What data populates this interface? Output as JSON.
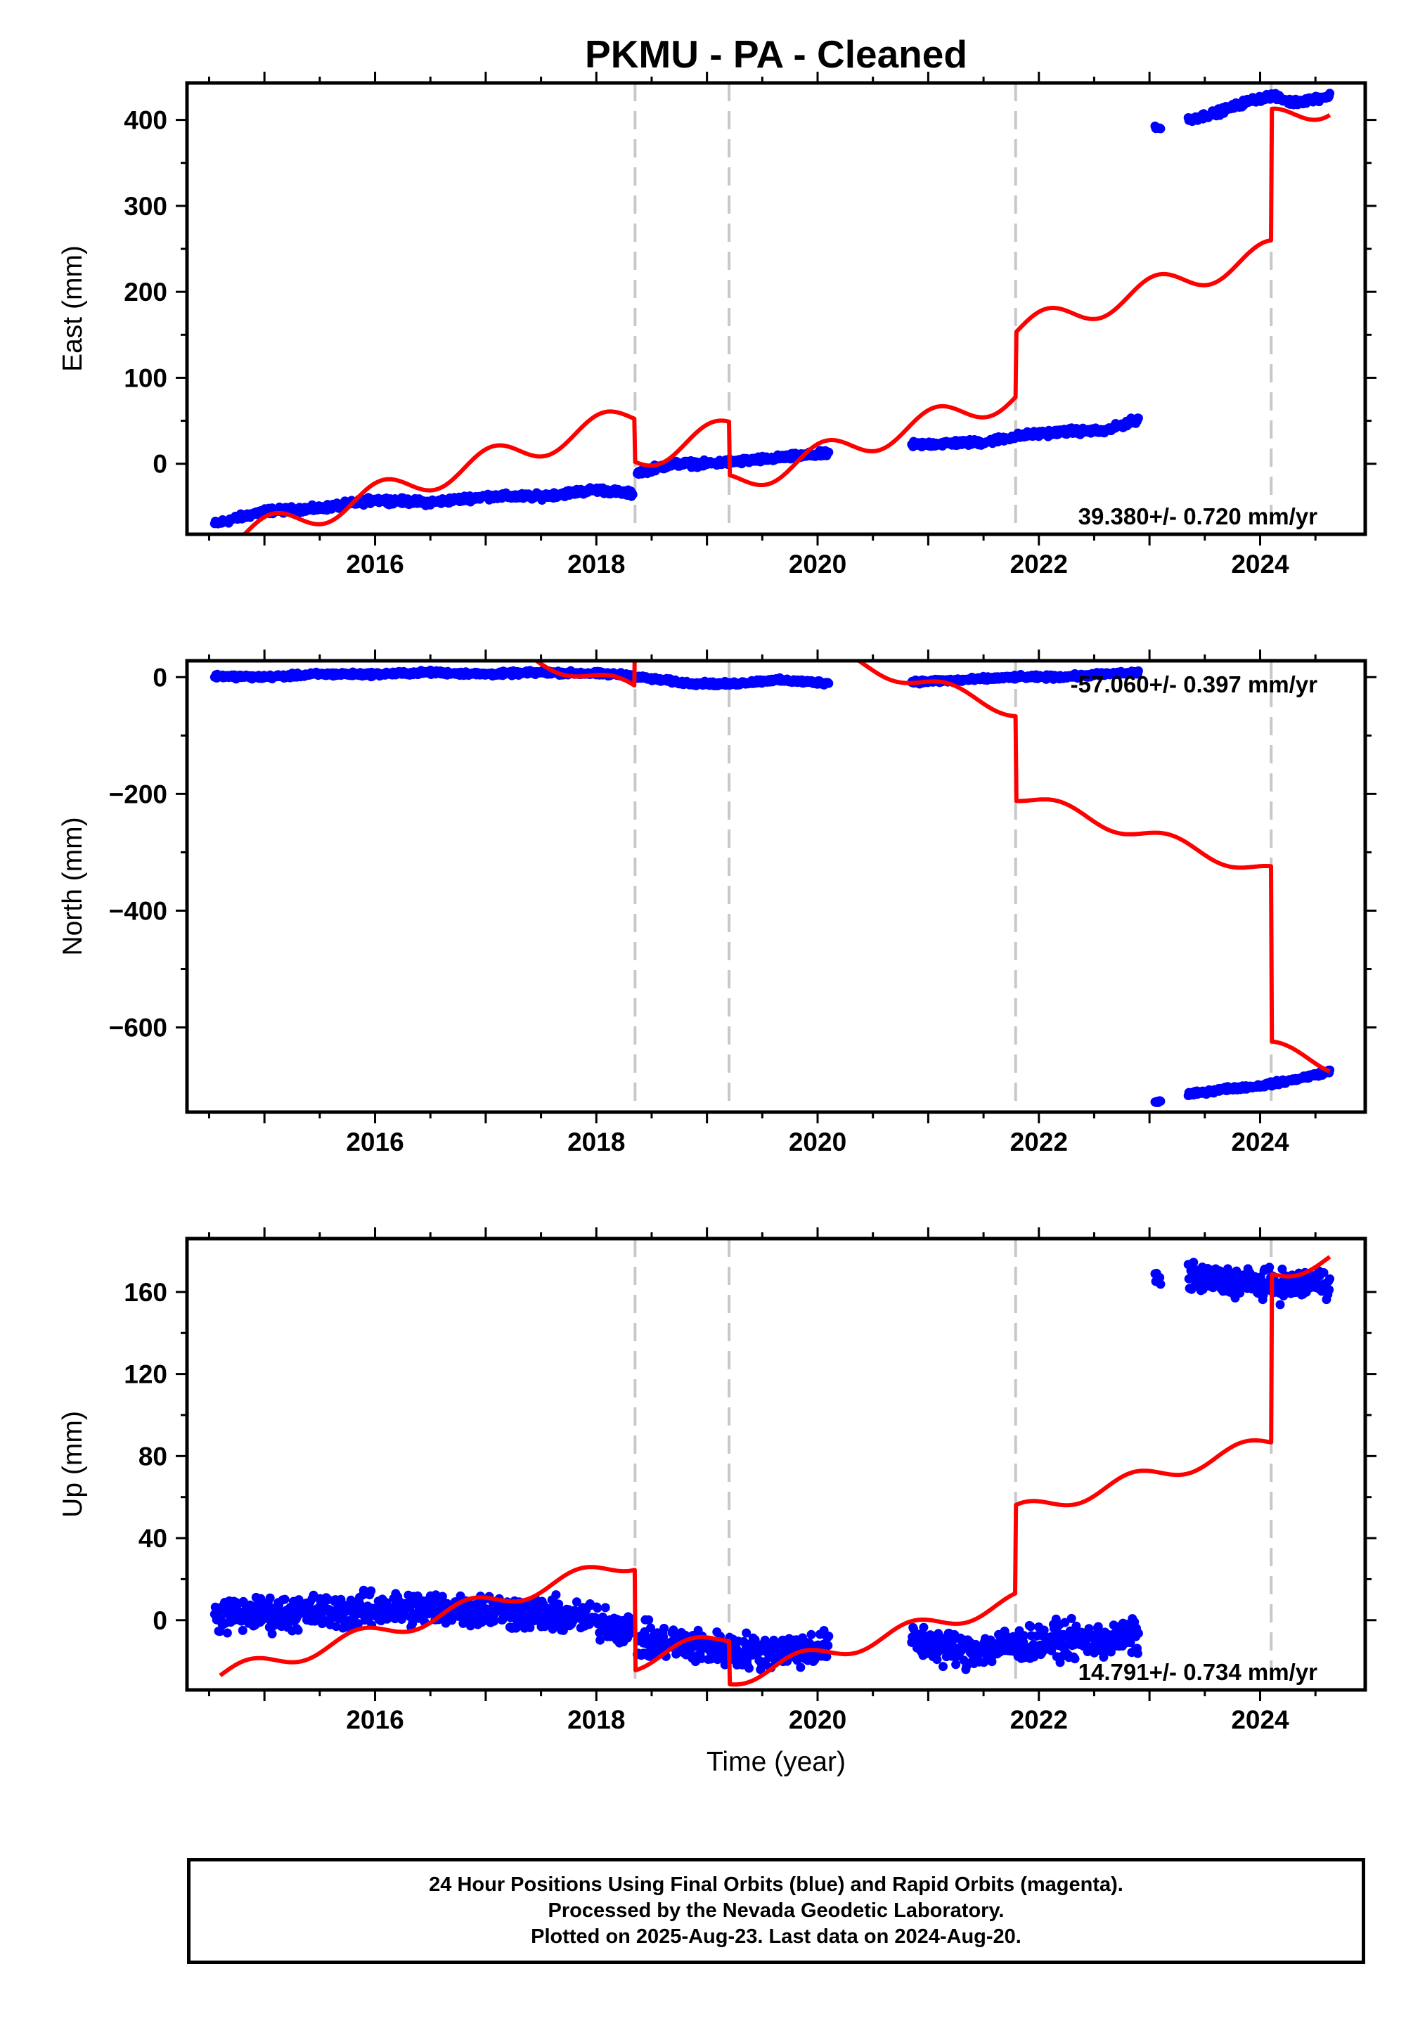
{
  "title": "PKMU  - PA - Cleaned",
  "colors": {
    "final_orbits": "#0000ff",
    "model": "#ff0000",
    "event_lines": "#c8c8c8"
  },
  "footer": {
    "line1": "24 Hour Positions Using Final Orbits (blue) and Rapid Orbits (magenta).",
    "line2": "Processed by the Nevada Geodetic Laboratory.",
    "line3": "Plotted on 2025-Aug-23. Last data on 2024-Aug-20."
  },
  "chart_data": [
    {
      "type": "scatter",
      "name_key": "east",
      "ylabel": "East (mm)",
      "xlabel": "",
      "xlim": [
        2014.3,
        2024.95
      ],
      "ylim": [
        -82,
        443
      ],
      "xticks": [
        2016,
        2018,
        2020,
        2022,
        2024
      ],
      "yticks": [
        0,
        100,
        200,
        300,
        400
      ],
      "event_lines": [
        2018.35,
        2019.2,
        2021.79,
        2024.1
      ],
      "rate_label": "39.380+/- 0.720 mm/yr",
      "series": [
        {
          "kind": "points",
          "segments": [
            {
              "x": [
                2014.55,
                2015.0,
                2015.5,
                2016.0,
                2016.5,
                2017.0,
                2017.5,
                2018.0,
                2018.33
              ],
              "y": [
                -70,
                -55,
                -52,
                -42,
                -45,
                -38,
                -38,
                -30,
                -35
              ],
              "noise": 3
            },
            {
              "x": [
                2018.37,
                2018.7,
                2019.0,
                2019.5,
                2020.1
              ],
              "y": [
                -10,
                0,
                0,
                5,
                12
              ],
              "noise": 3
            },
            {
              "x": [
                2020.85,
                2021.2,
                2021.5,
                2021.8,
                2022.0,
                2022.3,
                2022.6,
                2022.9
              ],
              "y": [
                22,
                24,
                25,
                32,
                35,
                38,
                38,
                52
              ],
              "noise": 3
            },
            {
              "x": [
                2023.05,
                2023.1
              ],
              "y": [
                392,
                390
              ],
              "noise": 2
            },
            {
              "x": [
                2023.35,
                2023.6,
                2023.9,
                2024.1,
                2024.3,
                2024.63
              ],
              "y": [
                400,
                408,
                422,
                428,
                420,
                428
              ],
              "noise": 3
            }
          ]
        },
        {
          "kind": "model",
          "x0": 2014.3,
          "x1": 2024.63,
          "base_value": -76,
          "base_time": 2015.0,
          "rate": 39.38,
          "annual_amplitude": 15,
          "annual_phase": 1.2,
          "steps": [
            {
              "t": 2018.35,
              "offset": -50
            },
            {
              "t": 2019.2,
              "offset": -62
            },
            {
              "t": 2021.79,
              "offset": 75
            },
            {
              "t": 2024.1,
              "offset": 153
            }
          ]
        }
      ]
    },
    {
      "type": "scatter",
      "name_key": "north",
      "ylabel": "North (mm)",
      "xlabel": "",
      "xlim": [
        2014.3,
        2024.95
      ],
      "ylim": [
        -745,
        28
      ],
      "xticks": [
        2016,
        2018,
        2020,
        2022,
        2024
      ],
      "yticks": [
        0,
        -200,
        -400,
        -600
      ],
      "ytick_labels": [
        "0",
        "−200",
        "−400",
        "−600"
      ],
      "event_lines": [
        2018.35,
        2019.2,
        2021.79,
        2024.1
      ],
      "rate_label": "-57.060+/- 0.397 mm/yr",
      "series": [
        {
          "kind": "points",
          "segments": [
            {
              "x": [
                2014.55,
                2015.0,
                2015.5,
                2016.0,
                2016.5,
                2017.0,
                2017.5,
                2018.0,
                2018.33
              ],
              "y": [
                2,
                0,
                5,
                5,
                8,
                5,
                8,
                6,
                3
              ],
              "noise": 3
            },
            {
              "x": [
                2018.37,
                2018.8,
                2019.2,
                2019.6,
                2020.1
              ],
              "y": [
                0,
                -10,
                -12,
                -5,
                -10
              ],
              "noise": 3
            },
            {
              "x": [
                2020.85,
                2021.3,
                2021.8,
                2022.2,
                2022.6,
                2022.9
              ],
              "y": [
                -8,
                -5,
                0,
                0,
                5,
                8
              ],
              "noise": 3
            },
            {
              "x": [
                2023.05,
                2023.1
              ],
              "y": [
                -728,
                -726
              ],
              "noise": 2
            },
            {
              "x": [
                2023.35,
                2023.7,
                2024.0,
                2024.3,
                2024.63
              ],
              "y": [
                -715,
                -705,
                -700,
                -690,
                -675
              ],
              "noise": 3
            }
          ]
        },
        {
          "kind": "model",
          "x0": 2014.3,
          "x1": 2024.63,
          "base_value": 170,
          "base_time": 2015.0,
          "rate": -57.06,
          "annual_amplitude": 12,
          "annual_phase": 0.4,
          "steps": [
            {
              "t": 2018.35,
              "offset": 115
            },
            {
              "t": 2019.2,
              "offset": 45
            },
            {
              "t": 2021.79,
              "offset": -145
            },
            {
              "t": 2024.1,
              "offset": -300
            }
          ]
        }
      ]
    },
    {
      "type": "scatter",
      "name_key": "up",
      "ylabel": "Up (mm)",
      "xlabel": "Time (year)",
      "xlim": [
        2014.3,
        2024.95
      ],
      "ylim": [
        -34,
        186
      ],
      "xticks": [
        2016,
        2018,
        2020,
        2022,
        2024
      ],
      "yticks": [
        0,
        40,
        80,
        120,
        160
      ],
      "event_lines": [
        2018.35,
        2019.2,
        2021.79,
        2024.1
      ],
      "rate_label": "14.791+/- 0.734 mm/yr",
      "series": [
        {
          "kind": "points",
          "segments": [
            {
              "x": [
                2014.55,
                2015.0,
                2015.5,
                2016.0,
                2016.5,
                2017.0,
                2017.5,
                2018.0,
                2018.33
              ],
              "y": [
                2,
                3,
                4,
                5,
                6,
                5,
                3,
                0,
                -5
              ],
              "noise": 7
            },
            {
              "x": [
                2018.37,
                2018.8,
                2019.2,
                2019.6,
                2020.1
              ],
              "y": [
                -10,
                -12,
                -15,
                -15,
                -13
              ],
              "noise": 7
            },
            {
              "x": [
                2020.85,
                2021.3,
                2021.8,
                2022.2,
                2022.6,
                2022.9
              ],
              "y": [
                -10,
                -15,
                -12,
                -10,
                -10,
                -8
              ],
              "noise": 7
            },
            {
              "x": [
                2023.05,
                2023.1
              ],
              "y": [
                168,
                164
              ],
              "noise": 4
            },
            {
              "x": [
                2023.35,
                2023.7,
                2024.0,
                2024.3,
                2024.63
              ],
              "y": [
                167,
                165,
                164,
                163,
                165
              ],
              "noise": 6
            }
          ]
        },
        {
          "kind": "model",
          "x0": 2014.6,
          "x1": 2024.63,
          "base_value": -21,
          "base_time": 2015.0,
          "rate": 14.791,
          "annual_amplitude": 4,
          "annual_phase": 2.5,
          "steps": [
            {
              "t": 2018.35,
              "offset": -49
            },
            {
              "t": 2019.2,
              "offset": -21
            },
            {
              "t": 2021.79,
              "offset": 43
            },
            {
              "t": 2024.1,
              "offset": 82
            }
          ]
        }
      ]
    }
  ]
}
